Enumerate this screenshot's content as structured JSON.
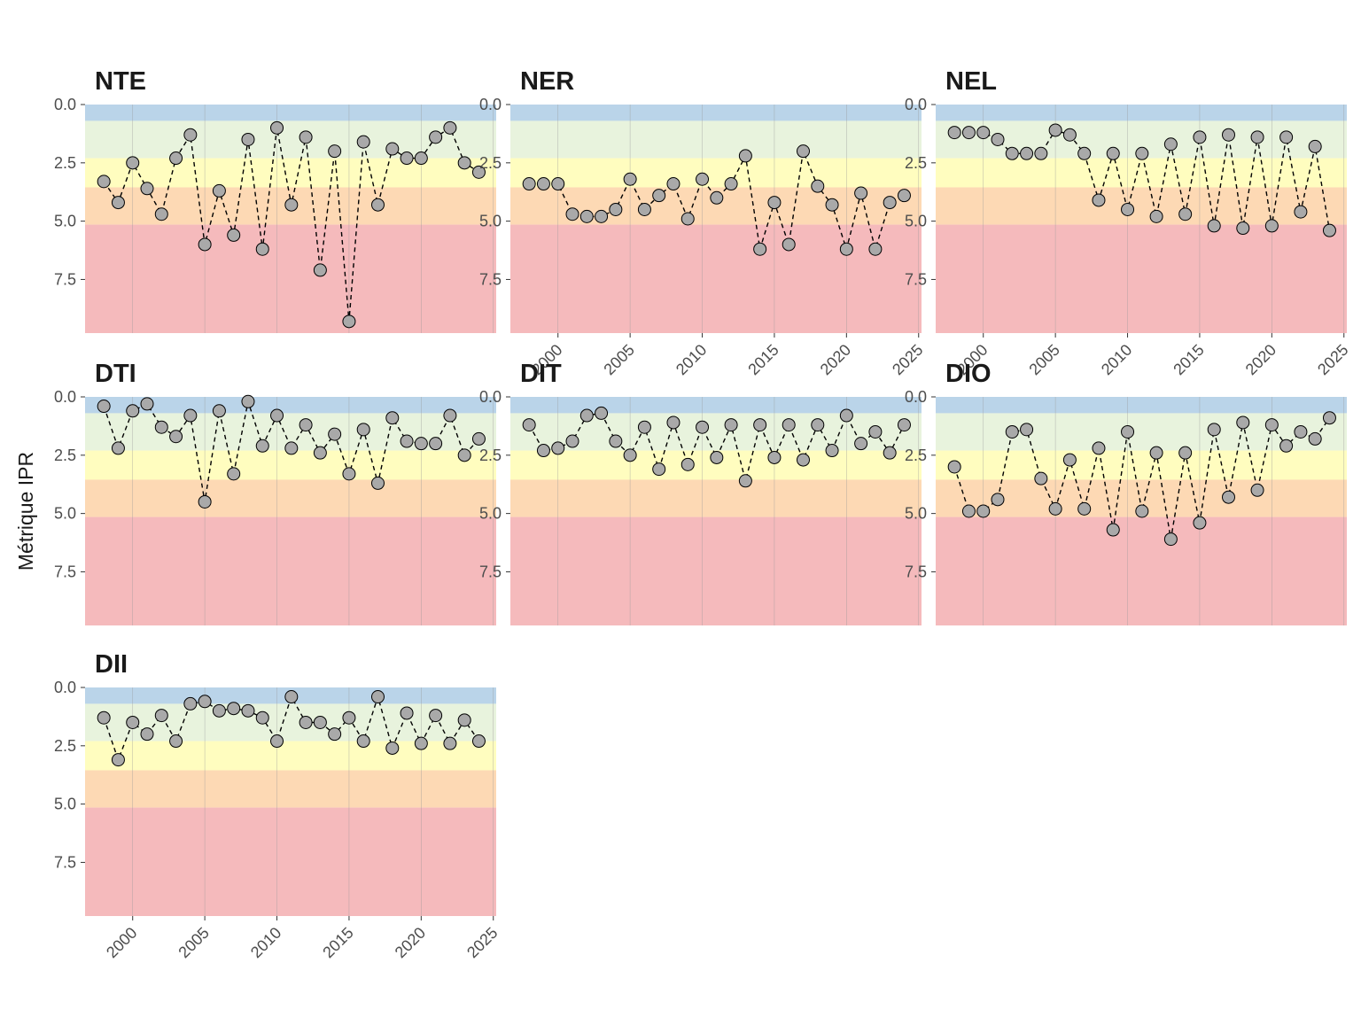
{
  "chart_data": {
    "type": "line",
    "ylabel": "Métrique IPR",
    "xlabel": "",
    "x_ticks": [
      2000,
      2005,
      2010,
      2015,
      2020,
      2025
    ],
    "y_ticks": [
      0.0,
      2.5,
      5.0,
      7.5
    ],
    "y_tick_labels": [
      "0.0",
      "2.5",
      "5.0",
      "7.5"
    ],
    "xlim": [
      1996.7,
      2025.2
    ],
    "ylim": [
      0,
      9.8
    ],
    "y_reversed": true,
    "bands": [
      {
        "from": 0,
        "to": 0.7,
        "color": "#bad4e9"
      },
      {
        "from": 0.7,
        "to": 2.3,
        "color": "#e8f3dd"
      },
      {
        "from": 2.3,
        "to": 3.55,
        "color": "#fffdbf"
      },
      {
        "from": 3.55,
        "to": 5.15,
        "color": "#fdd9b4"
      },
      {
        "from": 5.15,
        "to": 9.8,
        "color": "#f5babc"
      }
    ],
    "point_fill": "#a9a9a9",
    "line_style": "dashed",
    "x_years": [
      1998,
      1999,
      2000,
      2001,
      2002,
      2003,
      2004,
      2005,
      2006,
      2007,
      2008,
      2009,
      2010,
      2011,
      2012,
      2013,
      2014,
      2015,
      2016,
      2017,
      2018,
      2019,
      2020,
      2021,
      2022,
      2023,
      2024
    ],
    "panels": [
      {
        "title": "NTE",
        "values": [
          3.3,
          4.2,
          2.5,
          3.6,
          4.7,
          2.3,
          1.3,
          6.0,
          3.7,
          5.6,
          1.5,
          6.2,
          1.0,
          4.3,
          1.4,
          7.1,
          2.0,
          9.3,
          1.6,
          4.3,
          1.9,
          2.3,
          2.3,
          1.4,
          1.0,
          2.5,
          2.9
        ]
      },
      {
        "title": "NER",
        "values": [
          3.4,
          3.4,
          3.4,
          4.7,
          4.8,
          4.8,
          4.5,
          3.2,
          4.5,
          3.9,
          3.4,
          4.9,
          3.2,
          4.0,
          3.4,
          2.2,
          6.2,
          4.2,
          6.0,
          2.0,
          3.5,
          4.3,
          6.2,
          3.8,
          6.2,
          4.2,
          3.9
        ]
      },
      {
        "title": "NEL",
        "values": [
          1.2,
          1.2,
          1.2,
          1.5,
          2.1,
          2.1,
          2.1,
          1.1,
          1.3,
          2.1,
          4.1,
          2.1,
          4.5,
          2.1,
          4.8,
          1.7,
          4.7,
          1.4,
          5.2,
          1.3,
          5.3,
          1.4,
          5.2,
          1.4,
          4.6,
          1.8,
          5.4
        ]
      },
      {
        "title": "DTI",
        "values": [
          0.4,
          2.2,
          0.6,
          0.3,
          1.3,
          1.7,
          0.8,
          4.5,
          0.6,
          3.3,
          0.2,
          2.1,
          0.8,
          2.2,
          1.2,
          2.4,
          1.6,
          3.3,
          1.4,
          3.7,
          0.9,
          1.9,
          2.0,
          2.0,
          0.8,
          2.5,
          1.8
        ]
      },
      {
        "title": "DIT",
        "values": [
          1.2,
          2.3,
          2.2,
          1.9,
          0.8,
          0.7,
          1.9,
          2.5,
          1.3,
          3.1,
          1.1,
          2.9,
          1.3,
          2.6,
          1.2,
          3.6,
          1.2,
          2.6,
          1.2,
          2.7,
          1.2,
          2.3,
          0.8,
          2.0,
          1.5,
          2.4,
          1.2
        ]
      },
      {
        "title": "DIO",
        "values": [
          3.0,
          4.9,
          4.9,
          4.4,
          1.5,
          1.4,
          3.5,
          4.8,
          2.7,
          4.8,
          2.2,
          5.7,
          1.5,
          4.9,
          2.4,
          6.1,
          2.4,
          5.4,
          1.4,
          4.3,
          1.1,
          4.0,
          1.2,
          2.1,
          1.5,
          1.8,
          0.9
        ]
      },
      {
        "title": "DII",
        "values": [
          1.3,
          3.1,
          1.5,
          2.0,
          1.2,
          2.3,
          0.7,
          0.6,
          1.0,
          0.9,
          1.0,
          1.3,
          2.3,
          0.4,
          1.5,
          1.5,
          2.0,
          1.3,
          2.3,
          0.4,
          2.6,
          1.1,
          2.4,
          1.2,
          2.4,
          1.4,
          2.3
        ]
      }
    ]
  }
}
